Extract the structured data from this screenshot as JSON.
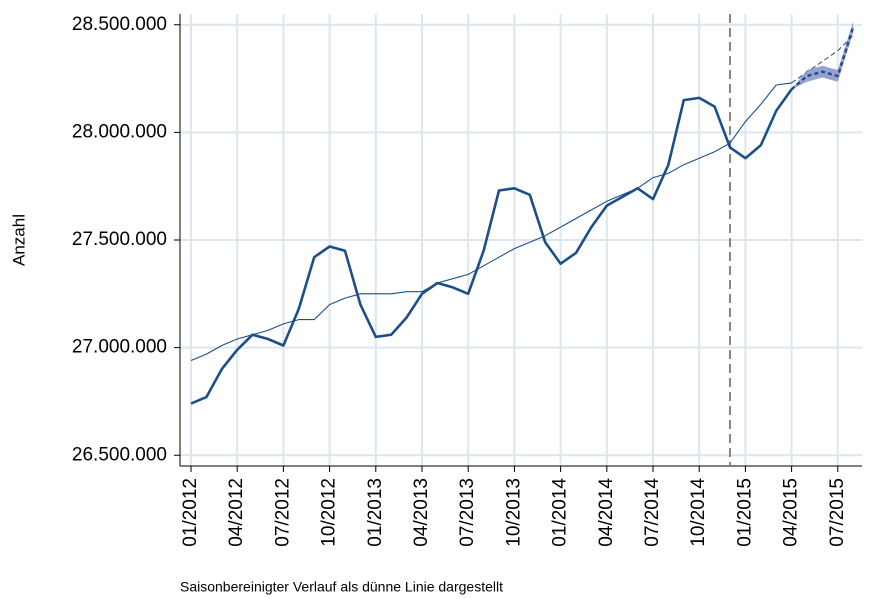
{
  "chart_data": {
    "type": "line",
    "y_label": "Anzahl",
    "note": "Saisonbereinigter Verlauf als dünne Linie dargestellt",
    "categories": [
      "01/2012",
      null,
      null,
      "04/2012",
      null,
      null,
      "07/2012",
      null,
      null,
      "10/2012",
      null,
      null,
      "01/2013",
      null,
      null,
      "04/2013",
      null,
      null,
      "07/2013",
      null,
      null,
      "10/2013",
      null,
      null,
      "01/2014",
      null,
      null,
      "04/2014",
      null,
      null,
      "07/2014",
      null,
      null,
      "10/2014",
      null,
      null,
      "01/2015",
      null,
      null,
      "04/2015",
      null,
      null,
      "07/2015",
      null
    ],
    "ylim": [
      26450000,
      28550000
    ],
    "yticks": [
      {
        "value": 26500000,
        "label": "26.500.000"
      },
      {
        "value": 27000000,
        "label": "27.000.000"
      },
      {
        "value": 27500000,
        "label": "27.500.000"
      },
      {
        "value": 28000000,
        "label": "28.000.000"
      },
      {
        "value": 28500000,
        "label": "28.500.000"
      }
    ],
    "grid": true,
    "reference_line_at": 35,
    "series": [
      {
        "color": "#1b4f8a",
        "width": 2.6,
        "dashed": false,
        "values": [
          26740000,
          26770000,
          26900000,
          26990000,
          27060000,
          27040000,
          27010000,
          27180000,
          27420000,
          27470000,
          27450000,
          27200000,
          27050000,
          27060000,
          27140000,
          27250000,
          27300000,
          27280000,
          27250000,
          27450000,
          27730000,
          27740000,
          27710000,
          27490000,
          27390000,
          27440000,
          27560000,
          27660000,
          27700000,
          27740000,
          27690000,
          27850000,
          28150000,
          28160000,
          28120000,
          27930000,
          27880000,
          27940000,
          28100000,
          28200000,
          null,
          null,
          null,
          null
        ]
      },
      {
        "color": "#1b4f8a",
        "width": 1.1,
        "dashed": false,
        "values": [
          26940000,
          26970000,
          27010000,
          27040000,
          27060000,
          27080000,
          27110000,
          27130000,
          27130000,
          27200000,
          27230000,
          27250000,
          27250000,
          27250000,
          27260000,
          27260000,
          27300000,
          27320000,
          27340000,
          27380000,
          27420000,
          27460000,
          27490000,
          27520000,
          27560000,
          27600000,
          27640000,
          27680000,
          27710000,
          27740000,
          27790000,
          27810000,
          27850000,
          27880000,
          27910000,
          27950000,
          28050000,
          28130000,
          28220000,
          28230000,
          null,
          null,
          null,
          null
        ]
      },
      {
        "color": "#1b4f8a",
        "width": 1,
        "dashed": true,
        "values": [
          null,
          null,
          null,
          null,
          null,
          null,
          null,
          null,
          null,
          null,
          null,
          null,
          null,
          null,
          null,
          null,
          null,
          null,
          null,
          null,
          null,
          null,
          null,
          null,
          null,
          null,
          null,
          null,
          null,
          null,
          null,
          null,
          null,
          null,
          null,
          null,
          null,
          null,
          null,
          28230000,
          28280000,
          28330000,
          28380000,
          28450000
        ]
      },
      {
        "color": "#1b4f8a",
        "width": 2.4,
        "dashed": true,
        "band_color": "#8890c8",
        "lower": [
          null,
          null,
          null,
          null,
          null,
          null,
          null,
          null,
          null,
          null,
          null,
          null,
          null,
          null,
          null,
          null,
          null,
          null,
          null,
          null,
          null,
          null,
          null,
          null,
          null,
          null,
          null,
          null,
          null,
          null,
          null,
          null,
          null,
          null,
          null,
          null,
          null,
          null,
          null,
          28200000,
          28235000,
          28255000,
          28235000,
          28465000
        ],
        "upper": [
          null,
          null,
          null,
          null,
          null,
          null,
          null,
          null,
          null,
          null,
          null,
          null,
          null,
          null,
          null,
          null,
          null,
          null,
          null,
          null,
          null,
          null,
          null,
          null,
          null,
          null,
          null,
          null,
          null,
          null,
          null,
          null,
          null,
          null,
          null,
          null,
          null,
          null,
          null,
          28200000,
          28290000,
          28310000,
          28290000,
          28515000
        ],
        "values": [
          null,
          null,
          null,
          null,
          null,
          null,
          null,
          null,
          null,
          null,
          null,
          null,
          null,
          null,
          null,
          null,
          null,
          null,
          null,
          null,
          null,
          null,
          null,
          null,
          null,
          null,
          null,
          null,
          null,
          null,
          null,
          null,
          null,
          null,
          null,
          null,
          null,
          null,
          null,
          28200000,
          28262000,
          28282000,
          28262000,
          28490000
        ]
      }
    ]
  }
}
